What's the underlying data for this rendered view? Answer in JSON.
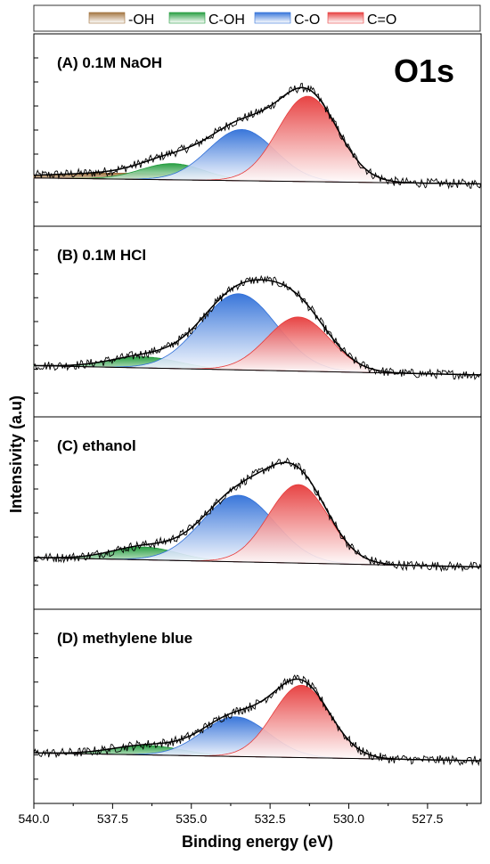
{
  "chart_data": {
    "type": "area",
    "title": "O1s",
    "xlabel": "Binding energy (eV)",
    "ylabel": "Intensivity (a.u)",
    "xlim": [
      540.0,
      525.8
    ],
    "x_reversed": true,
    "x_ticks": [
      540.0,
      537.5,
      535.0,
      532.5,
      530.0,
      527.5
    ],
    "x_tick_labels": [
      "540.0",
      "537.5",
      "535.0",
      "532.5",
      "530.0",
      "527.5"
    ],
    "legend_position": "top",
    "legend": [
      {
        "name": "-OH",
        "color": "#a0703a"
      },
      {
        "name": "C-OH",
        "color": "#1f9a3a"
      },
      {
        "name": "C-O",
        "color": "#2f6fd8"
      },
      {
        "name": "C=O",
        "color": "#e63a3a"
      }
    ],
    "panels": [
      {
        "label": "(A) 0.1M NaOH",
        "components": [
          {
            "name": "-OH",
            "center": 537.0,
            "height": 0.35,
            "sigma": 2.4
          },
          {
            "name": "C-OH",
            "center": 535.6,
            "height": 0.95,
            "sigma": 1.0
          },
          {
            "name": "C-O",
            "center": 533.4,
            "height": 3.0,
            "sigma": 1.05
          },
          {
            "name": "C=O",
            "center": 531.3,
            "height": 5.0,
            "sigma": 0.95
          }
        ],
        "baseline": [
          0.0,
          0.35
        ]
      },
      {
        "label": "(B) 0.1M HCl",
        "components": [
          {
            "name": "C-OH",
            "center": 536.5,
            "height": 0.65,
            "sigma": 1.1
          },
          {
            "name": "C-O",
            "center": 533.5,
            "height": 4.5,
            "sigma": 1.2
          },
          {
            "name": "C=O",
            "center": 531.6,
            "height": 3.2,
            "sigma": 1.0
          }
        ],
        "baseline": [
          0.0,
          0.55
        ]
      },
      {
        "label": "(C) ethanol",
        "components": [
          {
            "name": "C-OH",
            "center": 536.5,
            "height": 0.75,
            "sigma": 1.05
          },
          {
            "name": "C-O",
            "center": 533.5,
            "height": 3.9,
            "sigma": 1.15
          },
          {
            "name": "C=O",
            "center": 531.6,
            "height": 4.6,
            "sigma": 0.95
          }
        ],
        "baseline": [
          0.0,
          0.55
        ]
      },
      {
        "label": "(D) methylene blue",
        "components": [
          {
            "name": "C-OH",
            "center": 536.4,
            "height": 0.55,
            "sigma": 1.1
          },
          {
            "name": "C-O",
            "center": 533.6,
            "height": 2.3,
            "sigma": 1.05
          },
          {
            "name": "C=O",
            "center": 531.5,
            "height": 4.2,
            "sigma": 0.9
          }
        ],
        "baseline": [
          0.0,
          0.45
        ]
      }
    ]
  }
}
